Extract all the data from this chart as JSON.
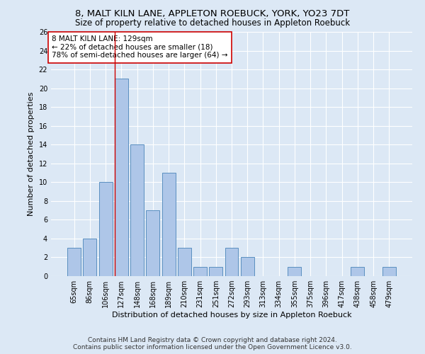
{
  "title1": "8, MALT KILN LANE, APPLETON ROEBUCK, YORK, YO23 7DT",
  "title2": "Size of property relative to detached houses in Appleton Roebuck",
  "xlabel": "Distribution of detached houses by size in Appleton Roebuck",
  "ylabel": "Number of detached properties",
  "categories": [
    "65sqm",
    "86sqm",
    "106sqm",
    "127sqm",
    "148sqm",
    "168sqm",
    "189sqm",
    "210sqm",
    "231sqm",
    "251sqm",
    "272sqm",
    "293sqm",
    "313sqm",
    "334sqm",
    "355sqm",
    "375sqm",
    "396sqm",
    "417sqm",
    "438sqm",
    "458sqm",
    "479sqm"
  ],
  "values": [
    3,
    4,
    10,
    21,
    14,
    7,
    11,
    3,
    1,
    1,
    3,
    2,
    0,
    0,
    1,
    0,
    0,
    0,
    1,
    0,
    1
  ],
  "bar_color": "#aec6e8",
  "bar_edge_color": "#5a8fc0",
  "highlight_bar_index": 3,
  "highlight_line_color": "#cc0000",
  "annotation_text": "8 MALT KILN LANE: 129sqm\n← 22% of detached houses are smaller (18)\n78% of semi-detached houses are larger (64) →",
  "annotation_box_color": "#ffffff",
  "annotation_box_edge_color": "#cc0000",
  "ylim": [
    0,
    26
  ],
  "yticks": [
    0,
    2,
    4,
    6,
    8,
    10,
    12,
    14,
    16,
    18,
    20,
    22,
    24,
    26
  ],
  "background_color": "#dce8f5",
  "grid_color": "#ffffff",
  "footer_line1": "Contains HM Land Registry data © Crown copyright and database right 2024.",
  "footer_line2": "Contains public sector information licensed under the Open Government Licence v3.0.",
  "title1_fontsize": 9.5,
  "title2_fontsize": 8.5,
  "xlabel_fontsize": 8,
  "ylabel_fontsize": 8,
  "tick_fontsize": 7,
  "footer_fontsize": 6.5,
  "annotation_fontsize": 7.5
}
